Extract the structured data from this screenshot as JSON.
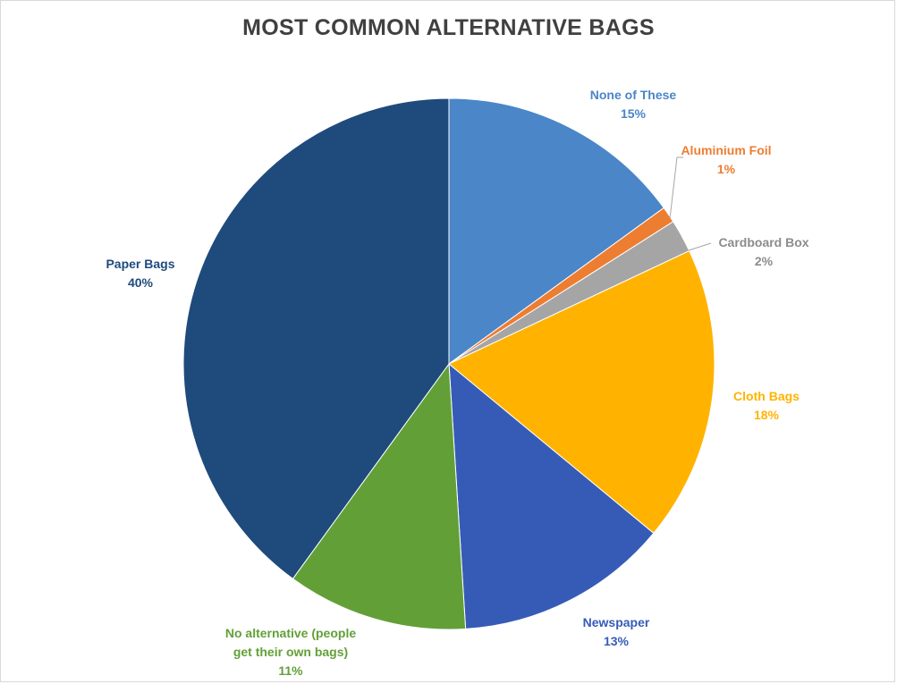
{
  "chart_data": {
    "type": "pie",
    "title": "MOST COMMON ALTERNATIVE BAGS",
    "slices": [
      {
        "label": "None of These",
        "value": 15,
        "value_label": "15%",
        "color": "#4a86c8",
        "label_color": "#4a86c8"
      },
      {
        "label": "Aluminium Foil",
        "value": 1,
        "value_label": "1%",
        "color": "#ed7d31",
        "label_color": "#ed7d31"
      },
      {
        "label": "Cardboard Box",
        "value": 2,
        "value_label": "2%",
        "color": "#a5a5a5",
        "label_color": "#8c8c8c"
      },
      {
        "label": "Cloth Bags",
        "value": 18,
        "value_label": "18%",
        "color": "#ffb300",
        "label_color": "#ffb300"
      },
      {
        "label": "Newspaper",
        "value": 13,
        "value_label": "13%",
        "color": "#365bb7",
        "label_color": "#365bb7"
      },
      {
        "label": "No alternative (people get their own bags)",
        "value": 11,
        "value_label": "11%",
        "color": "#62a037",
        "label_color": "#62a037"
      },
      {
        "label": "Paper Bags",
        "value": 40,
        "value_label": "40%",
        "color": "#1f4a7c",
        "label_color": "#1f4a7c"
      }
    ],
    "start_angle_deg": 0,
    "direction": "clockwise",
    "legend": "none",
    "data_labels": "outside"
  }
}
